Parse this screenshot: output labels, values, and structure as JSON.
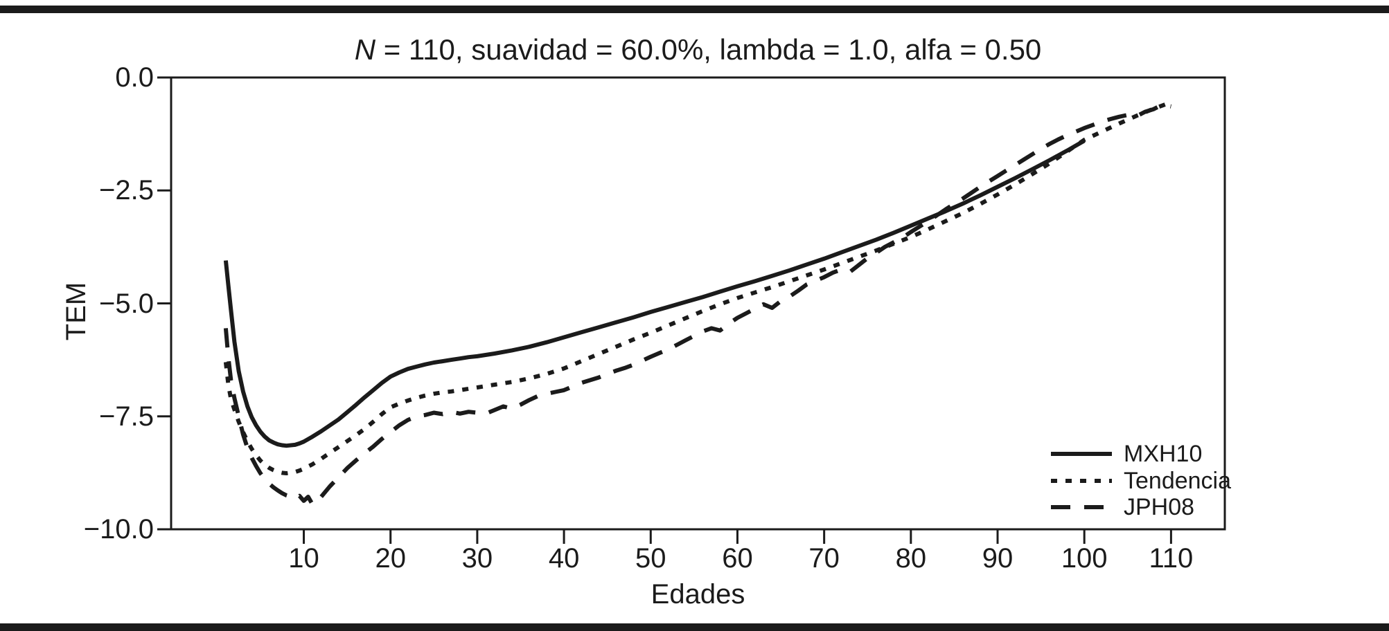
{
  "title": {
    "italic_n": "N",
    "rest": " = 110, suavidad = 60.0%, lambda = 1.0, alfa = 0.50"
  },
  "colors": {
    "ink": "#1b1b1b",
    "background": "#ffffff"
  },
  "chart_data": {
    "type": "line",
    "title": "N = 110, suavidad = 60.0%, lambda = 1.0, alfa = 0.50",
    "xlabel": "Edades",
    "ylabel": "TEM",
    "xlim": [
      -5.3,
      116.2
    ],
    "ylim": [
      -10,
      0
    ],
    "grid": false,
    "frame": "box",
    "x_ticks": [
      {
        "value": 10,
        "label": "10"
      },
      {
        "value": 20,
        "label": "20"
      },
      {
        "value": 30,
        "label": "30"
      },
      {
        "value": 40,
        "label": "40"
      },
      {
        "value": 50,
        "label": "50"
      },
      {
        "value": 60,
        "label": "60"
      },
      {
        "value": 70,
        "label": "70"
      },
      {
        "value": 80,
        "label": "80"
      },
      {
        "value": 90,
        "label": "90"
      },
      {
        "value": 100,
        "label": "100"
      },
      {
        "value": 110,
        "label": "110"
      }
    ],
    "y_ticks": [
      {
        "value": 0,
        "label": "0.0"
      },
      {
        "value": -2.5,
        "label": "−2.5"
      },
      {
        "value": -5,
        "label": "−5.0"
      },
      {
        "value": -7.5,
        "label": "−7.5"
      },
      {
        "value": -10,
        "label": "−10.0"
      }
    ],
    "legend": {
      "position": "inside-bottom-right",
      "entries": [
        {
          "label": "MXH10",
          "style": "solid"
        },
        {
          "label": "Tendencia",
          "style": "dotted"
        },
        {
          "label": "JPH08",
          "style": "dashed"
        }
      ]
    },
    "series": [
      {
        "name": "MXH10",
        "style": "solid",
        "points": [
          [
            1,
            -4.05
          ],
          [
            1.3,
            -4.6
          ],
          [
            1.6,
            -5.15
          ],
          [
            2,
            -5.85
          ],
          [
            2.5,
            -6.5
          ],
          [
            3,
            -6.95
          ],
          [
            3.5,
            -7.28
          ],
          [
            4,
            -7.52
          ],
          [
            4.5,
            -7.7
          ],
          [
            5,
            -7.84
          ],
          [
            5.5,
            -7.95
          ],
          [
            6,
            -8.03
          ],
          [
            6.5,
            -8.08
          ],
          [
            7,
            -8.12
          ],
          [
            7.5,
            -8.14
          ],
          [
            8,
            -8.15
          ],
          [
            9,
            -8.13
          ],
          [
            9.5,
            -8.1
          ],
          [
            10,
            -8.06
          ],
          [
            11,
            -7.95
          ],
          [
            12,
            -7.83
          ],
          [
            13,
            -7.7
          ],
          [
            14,
            -7.57
          ],
          [
            15,
            -7.41
          ],
          [
            16,
            -7.25
          ],
          [
            17,
            -7.08
          ],
          [
            18,
            -6.92
          ],
          [
            19,
            -6.76
          ],
          [
            20,
            -6.62
          ],
          [
            21,
            -6.53
          ],
          [
            22,
            -6.45
          ],
          [
            23,
            -6.4
          ],
          [
            24,
            -6.35
          ],
          [
            25,
            -6.31
          ],
          [
            26,
            -6.28
          ],
          [
            27,
            -6.25
          ],
          [
            28,
            -6.22
          ],
          [
            29,
            -6.19
          ],
          [
            30,
            -6.17
          ],
          [
            32,
            -6.11
          ],
          [
            34,
            -6.04
          ],
          [
            36,
            -5.96
          ],
          [
            38,
            -5.86
          ],
          [
            40,
            -5.75
          ],
          [
            42,
            -5.64
          ],
          [
            44,
            -5.53
          ],
          [
            46,
            -5.42
          ],
          [
            48,
            -5.31
          ],
          [
            50,
            -5.19
          ],
          [
            52,
            -5.08
          ],
          [
            54,
            -4.97
          ],
          [
            56,
            -4.86
          ],
          [
            58,
            -4.74
          ],
          [
            60,
            -4.62
          ],
          [
            62,
            -4.51
          ],
          [
            64,
            -4.39
          ],
          [
            66,
            -4.27
          ],
          [
            68,
            -4.14
          ],
          [
            70,
            -4.01
          ],
          [
            72,
            -3.87
          ],
          [
            74,
            -3.73
          ],
          [
            76,
            -3.59
          ],
          [
            78,
            -3.44
          ],
          [
            80,
            -3.28
          ],
          [
            82,
            -3.12
          ],
          [
            84,
            -2.96
          ],
          [
            86,
            -2.79
          ],
          [
            88,
            -2.61
          ],
          [
            90,
            -2.42
          ],
          [
            92,
            -2.23
          ],
          [
            94,
            -2.03
          ],
          [
            96,
            -1.83
          ],
          [
            98,
            -1.62
          ],
          [
            100,
            -1.4
          ]
        ]
      },
      {
        "name": "Tendencia",
        "style": "dotted",
        "points": [
          [
            1,
            -6.3
          ],
          [
            1.3,
            -6.8
          ],
          [
            1.6,
            -7.12
          ],
          [
            2,
            -7.35
          ],
          [
            2.5,
            -7.62
          ],
          [
            3,
            -7.85
          ],
          [
            3.5,
            -8.05
          ],
          [
            4,
            -8.22
          ],
          [
            4.5,
            -8.36
          ],
          [
            5,
            -8.48
          ],
          [
            5.5,
            -8.57
          ],
          [
            6,
            -8.64
          ],
          [
            6.5,
            -8.69
          ],
          [
            7,
            -8.73
          ],
          [
            7.5,
            -8.75
          ],
          [
            8,
            -8.76
          ],
          [
            9,
            -8.73
          ],
          [
            9.5,
            -8.7
          ],
          [
            10,
            -8.66
          ],
          [
            11,
            -8.56
          ],
          [
            12,
            -8.44
          ],
          [
            13,
            -8.31
          ],
          [
            14,
            -8.18
          ],
          [
            15,
            -8.05
          ],
          [
            16,
            -7.92
          ],
          [
            17,
            -7.78
          ],
          [
            18,
            -7.62
          ],
          [
            19,
            -7.45
          ],
          [
            20,
            -7.3
          ],
          [
            21,
            -7.22
          ],
          [
            22,
            -7.15
          ],
          [
            23,
            -7.09
          ],
          [
            24,
            -7.04
          ],
          [
            25,
            -7.0
          ],
          [
            26,
            -6.97
          ],
          [
            27,
            -6.95
          ],
          [
            28,
            -6.92
          ],
          [
            29,
            -6.89
          ],
          [
            30,
            -6.86
          ],
          [
            32,
            -6.8
          ],
          [
            34,
            -6.74
          ],
          [
            36,
            -6.66
          ],
          [
            38,
            -6.56
          ],
          [
            40,
            -6.44
          ],
          [
            42,
            -6.28
          ],
          [
            44,
            -6.12
          ],
          [
            46,
            -5.96
          ],
          [
            48,
            -5.8
          ],
          [
            50,
            -5.65
          ],
          [
            52,
            -5.49
          ],
          [
            54,
            -5.33
          ],
          [
            56,
            -5.17
          ],
          [
            58,
            -5.02
          ],
          [
            60,
            -4.88
          ],
          [
            62,
            -4.76
          ],
          [
            64,
            -4.64
          ],
          [
            66,
            -4.51
          ],
          [
            68,
            -4.38
          ],
          [
            70,
            -4.25
          ],
          [
            72,
            -4.11
          ],
          [
            74,
            -3.97
          ],
          [
            76,
            -3.83
          ],
          [
            78,
            -3.68
          ],
          [
            80,
            -3.53
          ],
          [
            82,
            -3.36
          ],
          [
            84,
            -3.18
          ],
          [
            86,
            -3.0
          ],
          [
            88,
            -2.8
          ],
          [
            90,
            -2.59
          ],
          [
            92,
            -2.37
          ],
          [
            94,
            -2.14
          ],
          [
            96,
            -1.9
          ],
          [
            98,
            -1.64
          ],
          [
            100,
            -1.38
          ],
          [
            102,
            -1.2
          ],
          [
            104,
            -1.02
          ],
          [
            106,
            -0.85
          ],
          [
            108,
            -0.69
          ],
          [
            110,
            -0.55
          ]
        ]
      },
      {
        "name": "JPH08",
        "style": "dashed",
        "points": [
          [
            1,
            -5.55
          ],
          [
            1.3,
            -6.2
          ],
          [
            1.6,
            -6.7
          ],
          [
            2,
            -7.1
          ],
          [
            2.5,
            -7.5
          ],
          [
            3,
            -7.9
          ],
          [
            3.5,
            -8.2
          ],
          [
            4,
            -8.42
          ],
          [
            4.5,
            -8.6
          ],
          [
            5,
            -8.76
          ],
          [
            5.5,
            -8.89
          ],
          [
            6,
            -8.99
          ],
          [
            6.5,
            -9.07
          ],
          [
            7,
            -9.14
          ],
          [
            7.5,
            -9.2
          ],
          [
            8,
            -9.25
          ],
          [
            8.5,
            -9.28
          ],
          [
            9,
            -9.32
          ],
          [
            9.5,
            -9.26
          ],
          [
            10,
            -9.37
          ],
          [
            10.5,
            -9.28
          ],
          [
            11,
            -9.45
          ],
          [
            11.5,
            -9.38
          ],
          [
            12,
            -9.28
          ],
          [
            13,
            -9.05
          ],
          [
            14,
            -8.85
          ],
          [
            15,
            -8.65
          ],
          [
            16,
            -8.48
          ],
          [
            17,
            -8.32
          ],
          [
            18,
            -8.17
          ],
          [
            19,
            -8.0
          ],
          [
            20,
            -7.85
          ],
          [
            21,
            -7.7
          ],
          [
            22,
            -7.58
          ],
          [
            23,
            -7.5
          ],
          [
            24,
            -7.47
          ],
          [
            25,
            -7.42
          ],
          [
            26,
            -7.45
          ],
          [
            27,
            -7.4
          ],
          [
            28,
            -7.44
          ],
          [
            29,
            -7.4
          ],
          [
            30,
            -7.42
          ],
          [
            31,
            -7.44
          ],
          [
            32,
            -7.36
          ],
          [
            33,
            -7.28
          ],
          [
            34,
            -7.33
          ],
          [
            35,
            -7.24
          ],
          [
            36,
            -7.14
          ],
          [
            37,
            -7.05
          ],
          [
            38,
            -7.0
          ],
          [
            39,
            -6.96
          ],
          [
            40,
            -6.92
          ],
          [
            41,
            -6.84
          ],
          [
            42,
            -6.76
          ],
          [
            43,
            -6.7
          ],
          [
            44,
            -6.64
          ],
          [
            45,
            -6.56
          ],
          [
            46,
            -6.49
          ],
          [
            47,
            -6.43
          ],
          [
            48,
            -6.36
          ],
          [
            49,
            -6.27
          ],
          [
            50,
            -6.18
          ],
          [
            51,
            -6.1
          ],
          [
            52,
            -6.02
          ],
          [
            53,
            -5.92
          ],
          [
            54,
            -5.82
          ],
          [
            55,
            -5.72
          ],
          [
            56,
            -5.62
          ],
          [
            57,
            -5.55
          ],
          [
            58,
            -5.6
          ],
          [
            59,
            -5.45
          ],
          [
            60,
            -5.32
          ],
          [
            61,
            -5.22
          ],
          [
            62,
            -5.12
          ],
          [
            63,
            -5.02
          ],
          [
            64,
            -5.1
          ],
          [
            65,
            -4.95
          ],
          [
            66,
            -4.85
          ],
          [
            67,
            -4.72
          ],
          [
            68,
            -4.58
          ],
          [
            69,
            -4.5
          ],
          [
            70,
            -4.42
          ],
          [
            71,
            -4.32
          ],
          [
            72,
            -4.25
          ],
          [
            73,
            -4.3
          ],
          [
            74,
            -4.15
          ],
          [
            75,
            -4.0
          ],
          [
            76,
            -3.88
          ],
          [
            77,
            -3.75
          ],
          [
            78,
            -3.65
          ],
          [
            79,
            -3.55
          ],
          [
            80,
            -3.42
          ],
          [
            81,
            -3.3
          ],
          [
            82,
            -3.18
          ],
          [
            83,
            -3.05
          ],
          [
            84,
            -2.92
          ],
          [
            85,
            -2.8
          ],
          [
            86,
            -2.68
          ],
          [
            87,
            -2.55
          ],
          [
            88,
            -2.42
          ],
          [
            89,
            -2.3
          ],
          [
            90,
            -2.18
          ],
          [
            91,
            -2.06
          ],
          [
            92,
            -1.94
          ],
          [
            93,
            -1.82
          ],
          [
            94,
            -1.7
          ],
          [
            95,
            -1.58
          ],
          [
            96,
            -1.47
          ],
          [
            97,
            -1.37
          ],
          [
            98,
            -1.28
          ],
          [
            99,
            -1.2
          ],
          [
            100,
            -1.12
          ],
          [
            101,
            -1.05
          ],
          [
            102,
            -0.98
          ],
          [
            103,
            -0.92
          ],
          [
            104,
            -0.87
          ],
          [
            105,
            -0.83
          ],
          [
            106,
            -0.86
          ],
          [
            107,
            -0.76
          ],
          [
            108,
            -0.7
          ],
          [
            109,
            -0.6
          ],
          [
            110,
            -0.64
          ]
        ]
      }
    ]
  }
}
